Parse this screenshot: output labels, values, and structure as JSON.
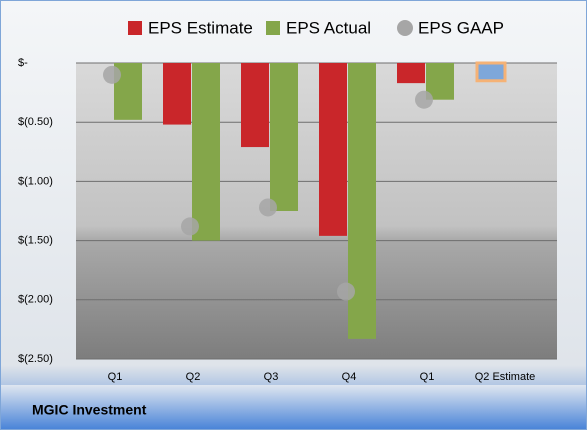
{
  "chart_data": {
    "type": "bar",
    "footer": "MGIC Investment",
    "categories": [
      "Q1",
      "Q2",
      "Q3",
      "Q4",
      "Q1",
      "Q2 Estimate"
    ],
    "series": [
      {
        "name": "EPS Estimate",
        "color": "#c9262a",
        "point_colors": [
          "#c9262a",
          "#c9262a",
          "#c9262a",
          "#c9262a",
          "#c9262a",
          "#7ea7da"
        ],
        "values": [
          null,
          -0.52,
          -0.71,
          -1.46,
          -0.17,
          -0.15
        ]
      },
      {
        "name": "EPS Actual",
        "color": "#84a64a",
        "values": [
          -0.48,
          -1.5,
          -1.25,
          -2.33,
          -0.31,
          null
        ]
      },
      {
        "name": "EPS GAAP",
        "color": "#a6a6a6",
        "marker": "circle",
        "values": [
          -0.1,
          -1.38,
          -1.22,
          -1.93,
          -0.31,
          null
        ]
      }
    ],
    "ylim": [
      -2.5,
      0
    ],
    "yticks": [
      {
        "value": 0,
        "label": "$-"
      },
      {
        "value": -0.5,
        "label": "$(0.50)"
      },
      {
        "value": -1,
        "label": "$(1.00)"
      },
      {
        "value": -1.5,
        "label": "$(1.50)"
      },
      {
        "value": -2,
        "label": "$(2.00)"
      },
      {
        "value": -2.5,
        "label": "$(2.50)"
      }
    ],
    "grid": true
  }
}
